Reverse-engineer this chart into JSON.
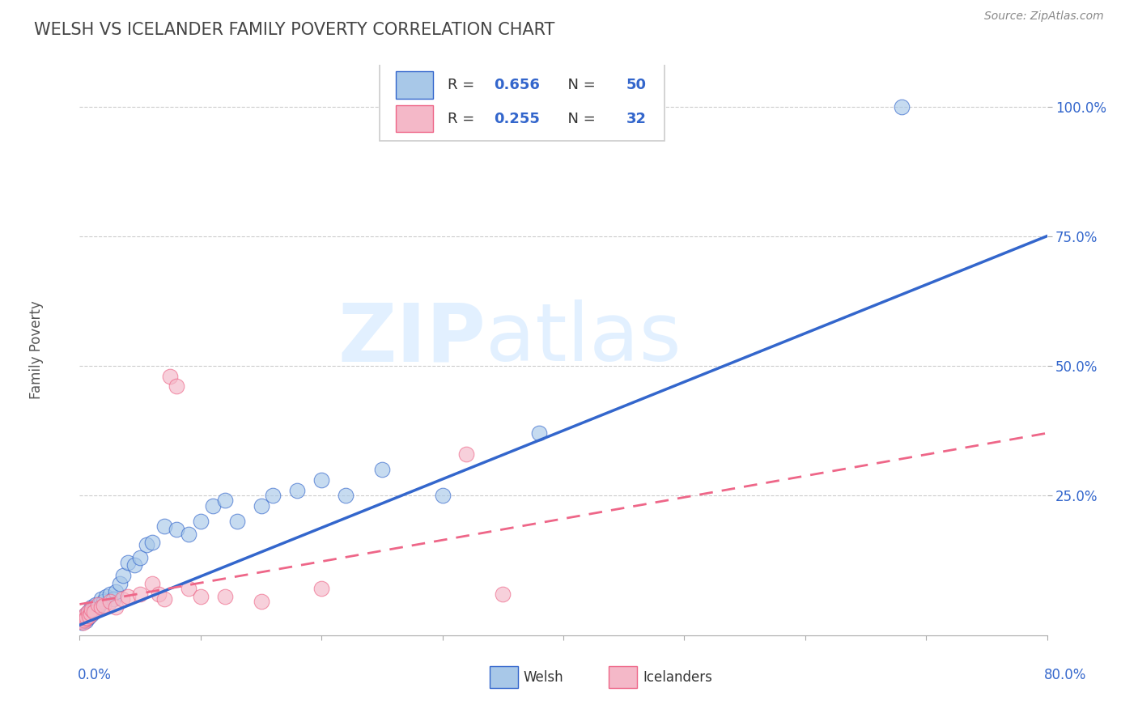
{
  "title": "WELSH VS ICELANDER FAMILY POVERTY CORRELATION CHART",
  "source": "Source: ZipAtlas.com",
  "ylabel": "Family Poverty",
  "watermark_zip": "ZIP",
  "watermark_atlas": "atlas",
  "welsh_R": 0.656,
  "welsh_N": 50,
  "icelander_R": 0.255,
  "icelander_N": 32,
  "welsh_color": "#a8c8e8",
  "icelander_color": "#f4b8c8",
  "welsh_line_color": "#3366cc",
  "icelander_line_color": "#ee6688",
  "welsh_line_x0": 0.0,
  "welsh_line_y0": 0.0,
  "welsh_line_x1": 0.8,
  "welsh_line_y1": 0.75,
  "icelander_line_x0": 0.0,
  "icelander_line_y0": 0.04,
  "icelander_line_x1": 0.8,
  "icelander_line_y1": 0.37,
  "xlim": [
    0.0,
    0.8
  ],
  "ylim": [
    -0.02,
    1.08
  ],
  "ytick_vals": [
    0.25,
    0.5,
    0.75,
    1.0
  ],
  "ytick_labels": [
    "25.0%",
    "50.0%",
    "75.0%",
    "100.0%"
  ],
  "grid_color": "#cccccc",
  "background_color": "#ffffff",
  "legend_text_color": "#3366cc",
  "legend_label_color": "#333333",
  "source_color": "#888888"
}
